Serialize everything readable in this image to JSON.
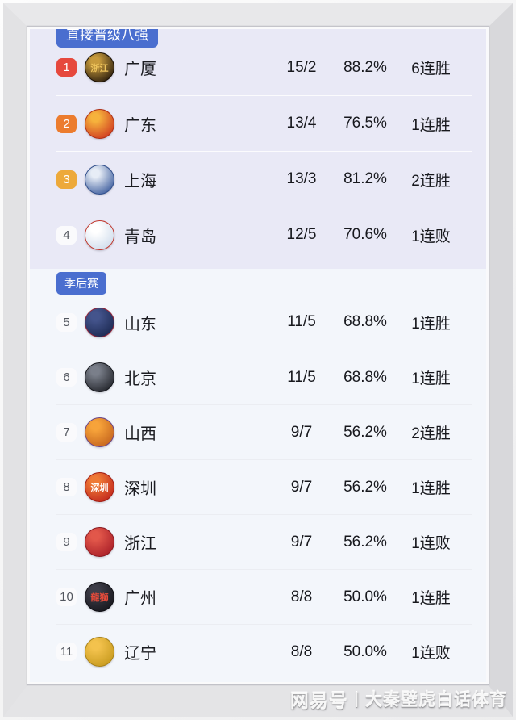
{
  "watermark": {
    "brand": "网易号",
    "divider": "|",
    "author": "大秦壁虎白话体育"
  },
  "colors": {
    "section_badge_blue": "#4a6ecf",
    "top_section_bg": "#e9e9f6",
    "bottom_section_bg": "#f3f6fb",
    "rank1": "#e6483d",
    "rank2": "#ec7c2e",
    "rank3": "#eda93a"
  },
  "table": {
    "sections": [
      {
        "badge": "直接晋级八强",
        "rows": [
          {
            "rank": "1",
            "team": "广厦",
            "record": "15/2",
            "win_pct": "88.2%",
            "streak": "6连胜",
            "rank_color": "#e6483d",
            "logo": {
              "name": "guangsha-lions-logo",
              "c1": "#c79a3c",
              "c2": "#2a1d0d",
              "ring": "#1c1206",
              "glyph": "浙江",
              "glyph_color": "#edc35c"
            }
          },
          {
            "rank": "2",
            "team": "广东",
            "record": "13/4",
            "win_pct": "76.5%",
            "streak": "1连胜",
            "rank_color": "#ec7c2e",
            "logo": {
              "name": "guangdong-tigers-logo",
              "c1": "#f6b23c",
              "c2": "#cf3a20",
              "ring": "#b03015",
              "glyph": "",
              "glyph_color": "#ffffff"
            }
          },
          {
            "rank": "3",
            "team": "上海",
            "record": "13/3",
            "win_pct": "81.2%",
            "streak": "2连胜",
            "rank_color": "#eda93a",
            "logo": {
              "name": "shanghai-sharks-logo",
              "c1": "#e7edf6",
              "c2": "#3e5e9e",
              "ring": "#32508c",
              "glyph": "",
              "glyph_color": "#ffffff"
            }
          },
          {
            "rank": "4",
            "team": "青岛",
            "record": "12/5",
            "win_pct": "70.6%",
            "streak": "1连败",
            "rank_color": null,
            "logo": {
              "name": "qingdao-eagles-logo",
              "c1": "#ffffff",
              "c2": "#cfdcec",
              "ring": "#c23a30",
              "glyph": "",
              "glyph_color": "#c23a30"
            }
          }
        ]
      },
      {
        "badge": "季后赛",
        "rows": [
          {
            "rank": "5",
            "team": "山东",
            "record": "11/5",
            "win_pct": "68.8%",
            "streak": "1连胜",
            "rank_color": null,
            "logo": {
              "name": "shandong-hispeed-logo",
              "c1": "#44548c",
              "c2": "#1b2850",
              "ring": "#93263a",
              "glyph": "",
              "glyph_color": "#ffffff"
            }
          },
          {
            "rank": "6",
            "team": "北京",
            "record": "11/5",
            "win_pct": "68.8%",
            "streak": "1连胜",
            "rank_color": null,
            "logo": {
              "name": "beijing-ducks-logo",
              "c1": "#7a7f8a",
              "c2": "#23252b",
              "ring": "#17191e",
              "glyph": "",
              "glyph_color": "#ffffff"
            }
          },
          {
            "rank": "7",
            "team": "山西",
            "record": "9/7",
            "win_pct": "56.2%",
            "streak": "2连胜",
            "rank_color": null,
            "logo": {
              "name": "shanxi-loongs-logo",
              "c1": "#f7a33a",
              "c2": "#c4641d",
              "ring": "#6d4687",
              "glyph": "",
              "glyph_color": "#ffffff"
            }
          },
          {
            "rank": "8",
            "team": "深圳",
            "record": "9/7",
            "win_pct": "56.2%",
            "streak": "1连胜",
            "rank_color": null,
            "logo": {
              "name": "shenzhen-leopards-logo",
              "c1": "#ef7a36",
              "c2": "#c1271d",
              "ring": "#a31e14",
              "glyph": "深圳",
              "glyph_color": "#ffffff"
            }
          },
          {
            "rank": "9",
            "team": "浙江",
            "record": "9/7",
            "win_pct": "56.2%",
            "streak": "1连败",
            "rank_color": null,
            "logo": {
              "name": "zhejiang-golden-bulls-logo",
              "c1": "#e2574a",
              "c2": "#a91f28",
              "ring": "#8c1a21",
              "glyph": "",
              "glyph_color": "#f3cf6b"
            }
          },
          {
            "rank": "10",
            "team": "广州",
            "record": "8/8",
            "win_pct": "50.0%",
            "streak": "1连胜",
            "rank_color": null,
            "logo": {
              "name": "guangzhou-loong-lions-logo",
              "c1": "#3d3d48",
              "c2": "#16161c",
              "ring": "#0f0f14",
              "glyph": "龍獅",
              "glyph_color": "#e84b3a"
            }
          },
          {
            "rank": "11",
            "team": "辽宁",
            "record": "8/8",
            "win_pct": "50.0%",
            "streak": "1连败",
            "rank_color": null,
            "logo": {
              "name": "liaoning-flying-leopards-logo",
              "c1": "#f3c24d",
              "c2": "#c79a1e",
              "ring": "#a8821a",
              "glyph": "",
              "glyph_color": "#ffffff"
            }
          }
        ]
      }
    ]
  }
}
